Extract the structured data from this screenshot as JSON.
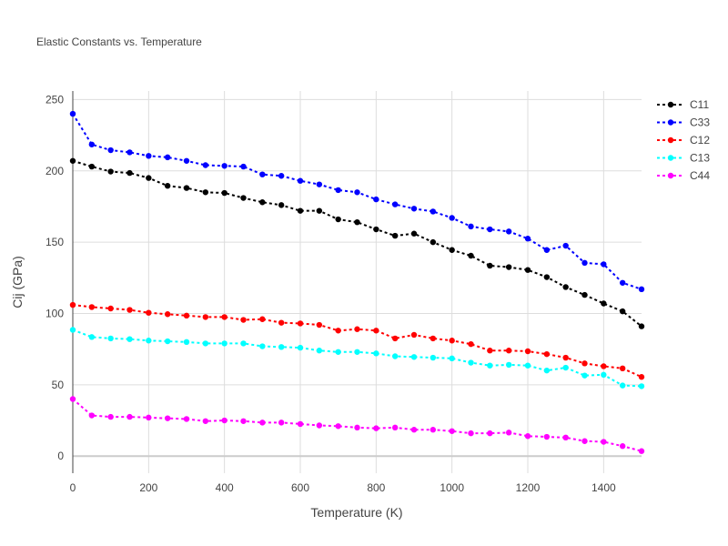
{
  "chart_data": {
    "type": "line",
    "title": "Elastic Constants vs. Temperature",
    "xlabel": "Temperature (K)",
    "ylabel": "Cij (GPa)",
    "xlim": [
      0,
      1500
    ],
    "ylim": [
      -12,
      256
    ],
    "xticks": [
      0,
      200,
      400,
      600,
      800,
      1000,
      1200,
      1400
    ],
    "yticks": [
      0,
      50,
      100,
      150,
      200,
      250
    ],
    "grid": true,
    "legend_position": "top-right",
    "x": [
      0,
      50,
      100,
      150,
      200,
      250,
      300,
      350,
      400,
      450,
      500,
      550,
      600,
      650,
      700,
      750,
      800,
      850,
      900,
      950,
      1000,
      1050,
      1100,
      1150,
      1200,
      1250,
      1300,
      1350,
      1400,
      1450,
      1500
    ],
    "series": [
      {
        "name": "C11",
        "color": "#000000",
        "values": [
          207,
          203,
          199.5,
          198.5,
          195,
          189.5,
          188,
          185,
          184.5,
          181,
          178,
          176,
          172,
          172,
          166,
          164,
          159,
          154.5,
          156,
          150,
          144.5,
          140.5,
          133.5,
          132.5,
          130.5,
          125.5,
          118.5,
          113,
          107,
          101.5,
          91
        ]
      },
      {
        "name": "C33",
        "color": "#0000ff",
        "values": [
          240,
          218.5,
          214.5,
          213,
          210.5,
          209.5,
          207,
          204,
          203.5,
          203,
          197.5,
          196.5,
          193,
          190.5,
          186.5,
          185,
          180,
          176.5,
          173.5,
          171.5,
          167,
          161,
          159,
          157.5,
          152.5,
          144.5,
          147.5,
          135.5,
          134.5,
          121.5,
          117
        ]
      },
      {
        "name": "C12",
        "color": "#ff0000",
        "values": [
          106,
          104.5,
          103.5,
          102.5,
          100.5,
          99.5,
          98.5,
          97.5,
          97.5,
          95.5,
          96,
          93.5,
          93,
          92,
          88,
          89,
          88,
          82.5,
          85,
          82.5,
          81,
          78.5,
          74,
          74,
          73.5,
          71.5,
          69,
          65,
          63,
          61.5,
          55.5
        ]
      },
      {
        "name": "C13",
        "color": "#00ffff",
        "values": [
          88.5,
          83.5,
          82.5,
          82,
          81,
          80.5,
          80,
          79,
          79,
          79,
          77,
          76.5,
          76,
          74,
          73,
          73,
          72,
          70,
          69.5,
          69,
          68.5,
          65.5,
          63.5,
          64,
          63.5,
          60,
          62,
          56.5,
          57,
          49.5,
          49
        ]
      },
      {
        "name": "C44",
        "color": "#ff00ff",
        "values": [
          40,
          28.5,
          27.5,
          27.5,
          27,
          26.5,
          26,
          24.5,
          25,
          24.5,
          23.5,
          23.5,
          22.5,
          21.5,
          21,
          20,
          19.5,
          20,
          18.5,
          18.5,
          17.5,
          16,
          16,
          16.5,
          14,
          13.5,
          13,
          10.5,
          10,
          7,
          3.5
        ]
      }
    ]
  }
}
